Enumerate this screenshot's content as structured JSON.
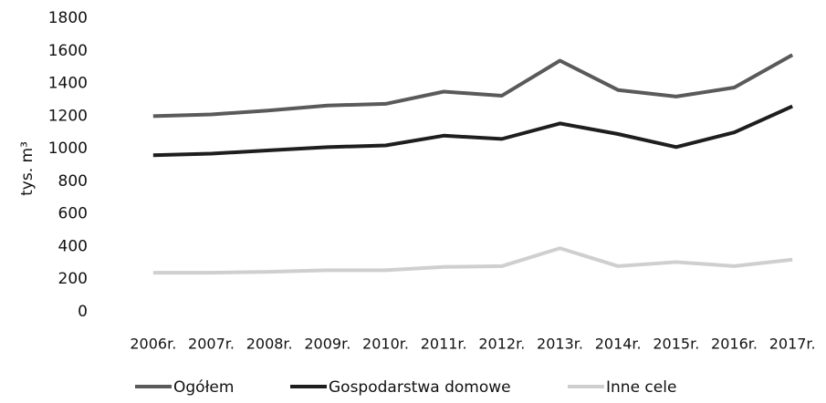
{
  "chart_data": {
    "type": "line",
    "y_label": "tys. m³",
    "categories": [
      "2006r.",
      "2007r.",
      "2008r.",
      "2009r.",
      "2010r.",
      "2011r.",
      "2012r.",
      "2013r.",
      "2014r.",
      "2015r.",
      "2016r.",
      "2017r."
    ],
    "series": [
      {
        "name": "Ogółem",
        "color": "#5a5a5a",
        "values": [
          1200,
          1210,
          1235,
          1265,
          1275,
          1350,
          1325,
          1540,
          1360,
          1320,
          1375,
          1575
        ]
      },
      {
        "name": "Gospodarstwa domowe",
        "color": "#1e1e1e",
        "values": [
          960,
          970,
          990,
          1010,
          1020,
          1080,
          1060,
          1155,
          1090,
          1010,
          1100,
          1260
        ]
      },
      {
        "name": "Inne cele",
        "color": "#cfcfcf",
        "values": [
          240,
          240,
          245,
          255,
          255,
          275,
          280,
          390,
          280,
          305,
          280,
          320
        ]
      }
    ],
    "ylim": [
      0,
      1800
    ],
    "yticks": [
      0,
      200,
      400,
      600,
      800,
      1000,
      1200,
      1400,
      1600,
      1800
    ],
    "grid": false,
    "legend": "bottom"
  }
}
